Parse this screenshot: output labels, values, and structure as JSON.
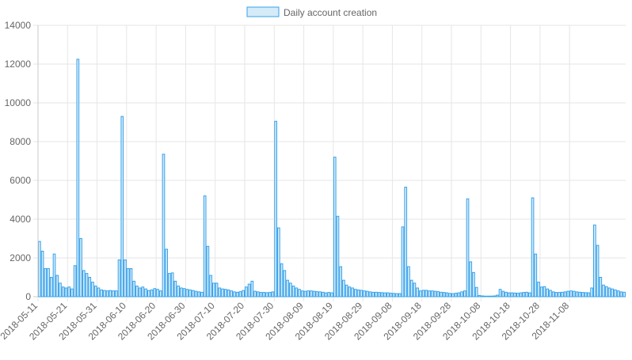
{
  "chart_data": {
    "type": "bar",
    "title": "",
    "xlabel": "",
    "ylabel": "",
    "ylim": [
      0,
      14000
    ],
    "y_ticks": [
      0,
      2000,
      4000,
      6000,
      8000,
      10000,
      12000,
      14000
    ],
    "grid": true,
    "legend_position": "top-center",
    "x_start": "2018-05-11",
    "x_end": "2018-11-08",
    "x_tick_labels": [
      "2018-05-11",
      "2018-05-21",
      "2018-05-31",
      "2018-06-10",
      "2018-06-20",
      "2018-06-30",
      "2018-07-10",
      "2018-07-20",
      "2018-07-30",
      "2018-08-09",
      "2018-08-19",
      "2018-08-29",
      "2018-09-08",
      "2018-09-18",
      "2018-09-28",
      "2018-10-08",
      "2018-10-18",
      "2018-10-28",
      "2018-11-08"
    ],
    "series": [
      {
        "name": "Daily account creation",
        "fill_color": "#d6ebf8",
        "border_color": "#36a2eb",
        "values": [
          2850,
          2350,
          1450,
          1450,
          1000,
          2200,
          1100,
          700,
          500,
          450,
          500,
          400,
          1600,
          12250,
          3000,
          1350,
          1200,
          1000,
          750,
          550,
          450,
          350,
          320,
          300,
          320,
          300,
          300,
          1900,
          9300,
          1900,
          1450,
          1450,
          800,
          550,
          450,
          500,
          400,
          320,
          350,
          420,
          380,
          300,
          7350,
          2450,
          1200,
          1230,
          800,
          550,
          450,
          420,
          380,
          350,
          320,
          280,
          250,
          230,
          5200,
          2600,
          1100,
          700,
          700,
          450,
          400,
          380,
          350,
          300,
          250,
          230,
          260,
          320,
          500,
          650,
          800,
          280,
          250,
          220,
          220,
          210,
          220,
          250,
          9050,
          3550,
          1700,
          1350,
          850,
          700,
          550,
          450,
          380,
          300,
          280,
          300,
          300,
          280,
          260,
          250,
          230,
          200,
          220,
          200,
          7200,
          4150,
          1550,
          850,
          600,
          500,
          450,
          380,
          350,
          330,
          300,
          280,
          250,
          230,
          230,
          220,
          210,
          200,
          200,
          180,
          170,
          160,
          160,
          3600,
          5650,
          1550,
          850,
          700,
          450,
          300,
          330,
          330,
          300,
          300,
          280,
          260,
          230,
          220,
          200,
          170,
          160,
          180,
          200,
          250,
          300,
          5050,
          1800,
          1250,
          480,
          60,
          40,
          30,
          30,
          30,
          40,
          80,
          380,
          280,
          230,
          200,
          200,
          190,
          180,
          200,
          220,
          230,
          200,
          5100,
          2200,
          750,
          500,
          520,
          400,
          330,
          250,
          220,
          220,
          230,
          250,
          280,
          300,
          280,
          250,
          230,
          220,
          210,
          200,
          450,
          3700,
          2650,
          1000,
          600,
          520,
          450,
          400,
          350,
          300,
          250,
          230
        ]
      }
    ]
  }
}
